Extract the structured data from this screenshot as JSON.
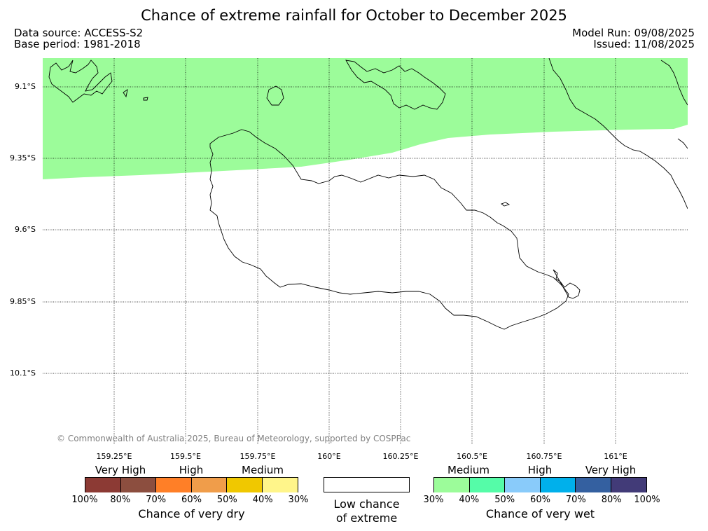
{
  "header": {
    "title": "Chance of extreme rainfall for October to December 2025",
    "data_source": "Data source: ACCESS-S2",
    "base_period": "Base period: 1981-2018",
    "model_run": "Model Run: 09/08/2025",
    "issued": "Issued: 11/08/2025"
  },
  "map": {
    "latitude_labels": [
      "9.1°S",
      "9.35°S",
      "9.6°S",
      "9.85°S",
      "10.1°S"
    ],
    "longitude_labels": [
      "159.25°E",
      "159.5°E",
      "159.75°E",
      "160°E",
      "160.25°E",
      "160.5°E",
      "160.75°E",
      "161°E"
    ],
    "shaded_category": "Chance of very wet 30%-40% (Medium)",
    "shade_color": "#9cfc9a",
    "copyright": "© Commonwealth of Australia 2025, Bureau of Meteorology, supported by COSPPac"
  },
  "legend": {
    "dry": {
      "categories": [
        "Very High",
        "High",
        "Medium"
      ],
      "colors": [
        "#8c3a34",
        "#8c4e3f",
        "#ff7f27",
        "#f09d4a",
        "#f0c800",
        "#fff58a"
      ],
      "ticks": [
        "100%",
        "80%",
        "70%",
        "60%",
        "50%",
        "40%",
        "30%"
      ],
      "caption": "Chance of very dry"
    },
    "neutral": {
      "caption_line1": "Low chance",
      "caption_line2": "of extreme",
      "color": "#ffffff"
    },
    "wet": {
      "categories": [
        "Medium",
        "High",
        "Very High"
      ],
      "colors": [
        "#9cfc9a",
        "#55fca8",
        "#89cbfa",
        "#00b0eb",
        "#3460a0",
        "#423b78"
      ],
      "ticks": [
        "30%",
        "40%",
        "50%",
        "60%",
        "70%",
        "80%",
        "100%"
      ],
      "caption": "Chance of very wet"
    }
  }
}
